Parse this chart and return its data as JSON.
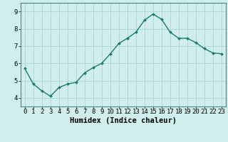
{
  "x": [
    0,
    1,
    2,
    3,
    4,
    5,
    6,
    7,
    8,
    9,
    10,
    11,
    12,
    13,
    14,
    15,
    16,
    17,
    18,
    19,
    20,
    21,
    22,
    23
  ],
  "y": [
    5.7,
    4.8,
    4.4,
    4.1,
    4.6,
    4.8,
    4.9,
    5.45,
    5.75,
    6.0,
    6.55,
    7.15,
    7.45,
    7.8,
    8.5,
    8.85,
    8.55,
    7.8,
    7.45,
    7.45,
    7.2,
    6.85,
    6.6,
    6.55
  ],
  "line_color": "#1a7a6e",
  "marker": "D",
  "markersize": 2.0,
  "linewidth": 1.0,
  "bg_color": "#d0eeec",
  "grid_color": "#a8d8d4",
  "xlabel": "Humidex (Indice chaleur)",
  "xlabel_fontsize": 7.5,
  "tick_fontsize": 6.5,
  "xlim": [
    -0.5,
    23.5
  ],
  "ylim": [
    3.5,
    9.5
  ],
  "yticks": [
    4,
    5,
    6,
    7,
    8,
    9
  ],
  "xticks": [
    0,
    1,
    2,
    3,
    4,
    5,
    6,
    7,
    8,
    9,
    10,
    11,
    12,
    13,
    14,
    15,
    16,
    17,
    18,
    19,
    20,
    21,
    22,
    23
  ]
}
